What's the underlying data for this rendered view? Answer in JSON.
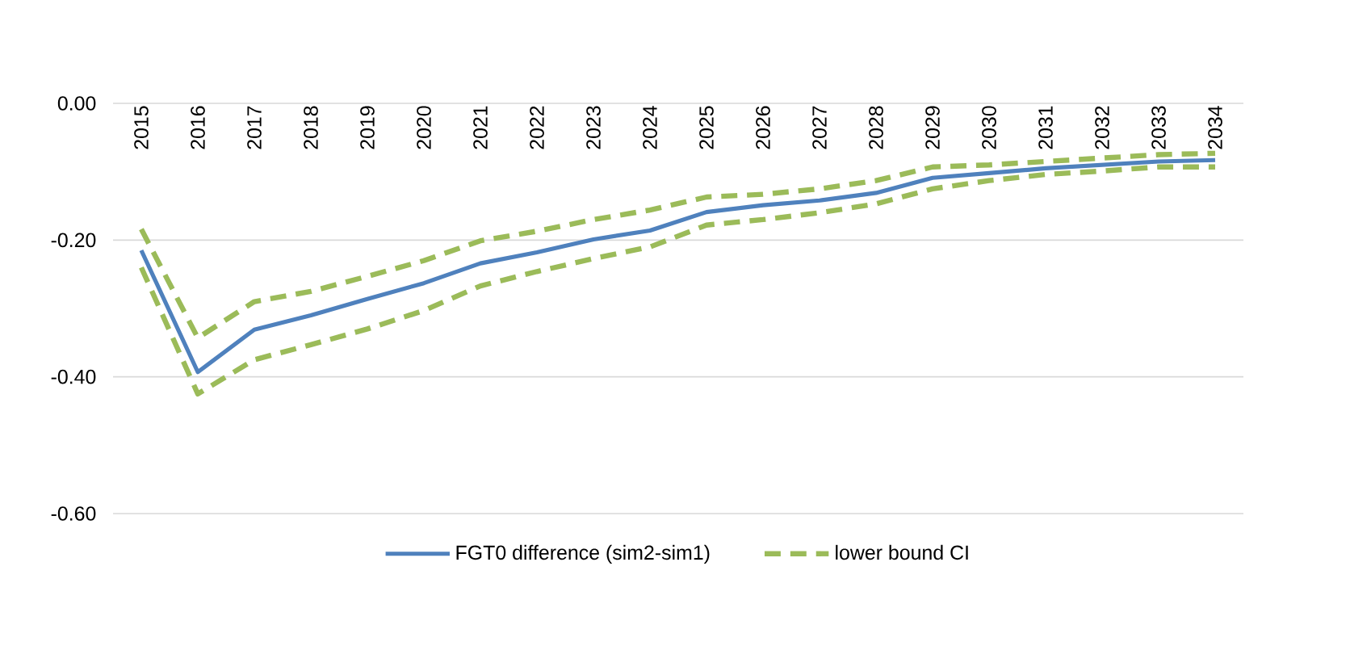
{
  "chart_data": {
    "type": "line",
    "categories": [
      "2015",
      "2016",
      "2017",
      "2018",
      "2019",
      "2020",
      "2021",
      "2022",
      "2023",
      "2024",
      "2025",
      "2026",
      "2027",
      "2028",
      "2029",
      "2030",
      "2031",
      "2032",
      "2033",
      "2034"
    ],
    "series": [
      {
        "name": "FGT0 difference (sim2-sim1)",
        "color": "#4f81bd",
        "line_style": "solid",
        "values": [
          -0.215,
          -0.393,
          -0.331,
          -0.31,
          -0.286,
          -0.263,
          -0.234,
          -0.218,
          -0.199,
          -0.186,
          -0.159,
          -0.149,
          -0.142,
          -0.131,
          -0.109,
          -0.102,
          -0.095,
          -0.09,
          -0.085,
          -0.083
        ]
      },
      {
        "name": "lower bound CI",
        "color": "#9bbb59",
        "line_style": "dashed",
        "values": [
          -0.24,
          -0.425,
          -0.375,
          -0.353,
          -0.33,
          -0.303,
          -0.267,
          -0.246,
          -0.227,
          -0.21,
          -0.178,
          -0.17,
          -0.16,
          -0.147,
          -0.125,
          -0.113,
          -0.104,
          -0.099,
          -0.093,
          -0.093
        ]
      },
      {
        "color": "#9bbb59",
        "line_style": "dashed",
        "values": [
          -0.184,
          -0.343,
          -0.29,
          -0.275,
          -0.253,
          -0.23,
          -0.201,
          -0.187,
          -0.17,
          -0.156,
          -0.137,
          -0.133,
          -0.125,
          -0.113,
          -0.093,
          -0.09,
          -0.085,
          -0.08,
          -0.075,
          -0.073
        ]
      }
    ],
    "ylim": [
      -0.6,
      0
    ],
    "yticks": [
      {
        "value": -0.6,
        "label": "-0.60"
      },
      {
        "value": -0.4,
        "label": "-0.40"
      },
      {
        "value": -0.2,
        "label": "-0.20"
      },
      {
        "value": 0,
        "label": "0.00"
      }
    ],
    "grid": "y",
    "legend": "bottom",
    "marker": "none"
  }
}
